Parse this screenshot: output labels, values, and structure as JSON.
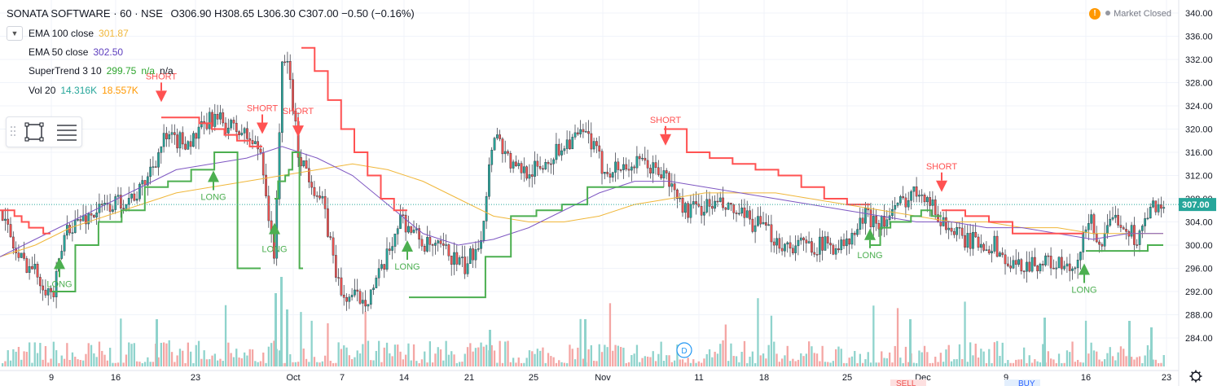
{
  "header": {
    "symbol": "SONATA SOFTWARE · 60 · NSE",
    "ohlc": "O306.90 H308.65 L306.30 C307.00 −0.50 (−0.16%)"
  },
  "indicators": [
    {
      "name": "EMA 100 close",
      "value": "301.87",
      "color": "#f0b73a"
    },
    {
      "name": "EMA 50 close",
      "value": "302.50",
      "color": "#5e3fbe"
    },
    {
      "name": "SuperTrend 3 10",
      "value": "299.75",
      "value2": "n/a",
      "value3": "n/a",
      "color": "#2ea52e"
    },
    {
      "name": "Vol 20",
      "value": "14.316K",
      "value2": "18.557K",
      "color": "#26a69a",
      "color2": "#ff9800"
    }
  ],
  "market_status": {
    "label": "Market Closed",
    "alert_icon": "!"
  },
  "price_axis": {
    "ticks": [
      "340.00",
      "336.00",
      "332.00",
      "328.00",
      "324.00",
      "320.00",
      "316.00",
      "312.00",
      "308.00",
      "304.00",
      "300.00",
      "296.00",
      "292.00",
      "288.00",
      "284.00"
    ],
    "min": 282.5,
    "max": 341,
    "last_price": "307.00",
    "last_price_color": "#26a69a"
  },
  "time_axis": {
    "ticks": [
      "9",
      "16",
      "23",
      "Oct",
      "7",
      "14",
      "21",
      "25",
      "Nov",
      "11",
      "18",
      "25",
      "Dec",
      "9",
      "16",
      "23"
    ]
  },
  "signals": [
    {
      "label": "SHORT",
      "price": 325.5
    },
    {
      "label": "SHORT",
      "price": 320
    },
    {
      "label": "SHORT",
      "price": 319.5
    },
    {
      "label": "SHORT",
      "price": 318
    },
    {
      "label": "SHORT",
      "price": 310
    },
    {
      "label": "LONG",
      "price": 297
    },
    {
      "label": "LONG",
      "price": 312
    },
    {
      "label": "LONG",
      "price": 303
    },
    {
      "label": "LONG",
      "price": 300
    },
    {
      "label": "LONG",
      "price": 302
    },
    {
      "label": "LONG",
      "price": 296
    }
  ],
  "event_marker": "D",
  "bottom_buttons": {
    "sell": "SELL",
    "buy": "BUY"
  },
  "colors": {
    "up": "#26a69a",
    "down": "#ef5350",
    "supertrend_up": "#4caf50",
    "supertrend_down": "#ff5252",
    "vol_up": "#8fd3cc",
    "vol_down": "#f4a6a4",
    "grid": "#f0f3fa"
  },
  "chart_data": {
    "type": "candlestick",
    "ema100": [
      298,
      300,
      303,
      305,
      307,
      309,
      310,
      311,
      312,
      313,
      314,
      313,
      311,
      308,
      305,
      304,
      304,
      305,
      307,
      308,
      309,
      309,
      309,
      308,
      307,
      306,
      305,
      304,
      304,
      303,
      303,
      302,
      302,
      302
    ],
    "ema50": [
      298,
      301,
      304,
      307,
      310,
      313,
      314,
      315,
      317,
      315,
      312,
      307,
      302,
      300,
      301,
      303,
      306,
      309,
      311,
      311,
      310,
      309,
      308,
      307,
      306,
      305,
      304,
      304,
      303,
      303,
      302,
      301,
      302,
      302
    ],
    "supertrend_long_1": [
      292,
      300,
      304,
      306,
      310,
      311,
      313,
      316,
      296
    ],
    "supertrend_short_1": [
      322,
      322,
      322,
      321,
      320,
      319,
      318,
      317
    ],
    "supertrend_long_2": [
      308,
      311,
      311,
      312,
      313,
      316,
      316,
      296
    ],
    "supertrend_short_2": [
      334,
      330,
      325,
      320,
      316,
      312,
      308,
      306
    ],
    "supertrend_long_3": [
      291,
      291,
      291,
      298,
      305,
      306,
      307,
      310,
      310,
      310
    ],
    "supertrend_short_3": [
      320,
      316,
      315,
      314,
      313,
      312,
      310,
      308,
      307
    ],
    "supertrend_long_4": [
      300,
      303,
      304,
      304,
      305,
      306,
      305
    ],
    "supertrend_short_4": [
      306,
      305,
      304,
      302,
      302,
      302
    ],
    "supertrend_long_5": [
      299,
      299,
      299,
      299,
      300
    ]
  }
}
